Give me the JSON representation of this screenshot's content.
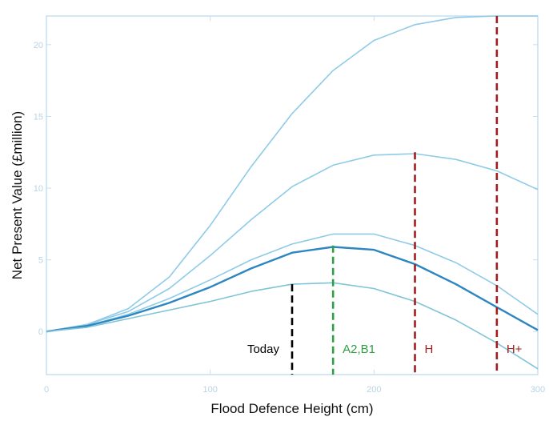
{
  "chart_data": {
    "type": "line",
    "title": "",
    "xlabel": "Flood Defence Height (cm)",
    "ylabel": "Net Present Value (£million)",
    "xlim": [
      0,
      300
    ],
    "ylim": [
      -3,
      22
    ],
    "x_ticks": [
      0,
      100,
      200,
      300
    ],
    "y_ticks": [
      0,
      5,
      10,
      15,
      20
    ],
    "grid": false,
    "legend": "none",
    "x": [
      0,
      25,
      50,
      75,
      100,
      125,
      150,
      175,
      200,
      225,
      250,
      275,
      300
    ],
    "series": [
      {
        "values": [
          0,
          0.5,
          1.6,
          3.8,
          7.4,
          11.5,
          15.2,
          18.2,
          20.3,
          21.4,
          21.9,
          22.0,
          22.0
        ],
        "color": "#8fcbe8",
        "width": 1.6
      },
      {
        "values": [
          0,
          0.5,
          1.4,
          3.0,
          5.3,
          7.8,
          10.1,
          11.6,
          12.3,
          12.4,
          12.0,
          11.2,
          9.9
        ],
        "color": "#8fcbe8",
        "width": 1.6
      },
      {
        "values": [
          0,
          0.4,
          1.2,
          2.3,
          3.6,
          5.0,
          6.1,
          6.8,
          6.8,
          6.0,
          4.8,
          3.2,
          1.2
        ],
        "color": "#8fcbe8",
        "width": 1.6
      },
      {
        "values": [
          0,
          0.4,
          1.1,
          2.0,
          3.1,
          4.4,
          5.5,
          5.9,
          5.7,
          4.7,
          3.3,
          1.7,
          0.1
        ],
        "color": "#2e86c1",
        "width": 2.4
      },
      {
        "values": [
          0,
          0.3,
          0.9,
          1.5,
          2.1,
          2.8,
          3.3,
          3.4,
          3.0,
          2.1,
          0.8,
          -0.8,
          -2.6
        ],
        "color": "#7fc4d8",
        "width": 1.6
      }
    ],
    "markers": [
      {
        "label": "Today",
        "x": 150,
        "y_top": 3.3,
        "color": "#000000",
        "label_side": "left"
      },
      {
        "label": "A2,B1",
        "x": 175,
        "y_top": 6.0,
        "color": "#2ea043",
        "label_side": "right"
      },
      {
        "label": "H",
        "x": 225,
        "y_top": 12.5,
        "color": "#a11d1d",
        "label_side": "right"
      },
      {
        "label": "H+",
        "x": 275,
        "y_top": 22.0,
        "color": "#a11d1d",
        "label_side": "right"
      }
    ],
    "marker_label_y": -1.5
  }
}
